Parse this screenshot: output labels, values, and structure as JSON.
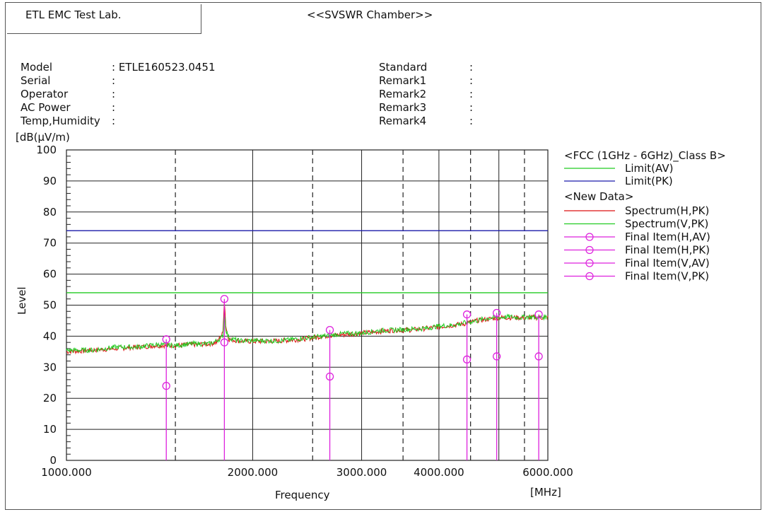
{
  "header": {
    "lab": "ETL EMC Test Lab.",
    "chamber": "<<SVSWR Chamber>>"
  },
  "info_left": [
    {
      "label": "Model",
      "value": ": ETLE160523.0451"
    },
    {
      "label": "Serial",
      "value": ":"
    },
    {
      "label": "Operator",
      "value": ":"
    },
    {
      "label": "AC Power",
      "value": ":"
    },
    {
      "label": "Temp,Humidity",
      "value": ":"
    }
  ],
  "info_right": [
    {
      "label": "Standard",
      "value": ":"
    },
    {
      "label": "Remark1",
      "value": ":"
    },
    {
      "label": "Remark2",
      "value": ":"
    },
    {
      "label": "Remark3",
      "value": ":"
    },
    {
      "label": "Remark4",
      "value": ":"
    }
  ],
  "chart_data": {
    "type": "line",
    "ylabel": "Level",
    "yunit": "[dB(μV/m)",
    "xlabel": "Frequency",
    "xunit": "[MHz]",
    "xscale": "log",
    "xlim": [
      1000,
      6000
    ],
    "ylim": [
      0,
      100
    ],
    "grid": true,
    "x_tick_labels": [
      {
        "value": 1000,
        "label": "1000.000"
      },
      {
        "value": 2000,
        "label": "2000.000"
      },
      {
        "value": 3000,
        "label": "3000.000"
      },
      {
        "value": 4000,
        "label": "4000.000"
      },
      {
        "value": 6000,
        "label": "6000.000"
      }
    ],
    "y_ticks": [
      0,
      10,
      20,
      30,
      40,
      50,
      60,
      70,
      80,
      90,
      100
    ],
    "x_grid_solid": [
      2000,
      3000,
      4000,
      5000
    ],
    "x_grid_dashed": [
      1500,
      2500,
      3500,
      4500,
      5500
    ],
    "legend_title": "<FCC (1GHz - 6GHz)_Class B>",
    "legend_placement": "right",
    "limits": [
      {
        "name": "Limit(AV)",
        "value": 54,
        "color": "#22cc22"
      },
      {
        "name": "Limit(PK)",
        "value": 74,
        "color": "#1a1aaa"
      }
    ],
    "legend_group": "<New Data>",
    "series": [
      {
        "name": "Spectrum(H,PK)",
        "color": "#dd1111",
        "x": [
          1000,
          1100,
          1200,
          1300,
          1400,
          1500,
          1600,
          1700,
          1750,
          1790,
          1800,
          1810,
          1830,
          1900,
          2000,
          2200,
          2400,
          2600,
          2800,
          3000,
          3200,
          3400,
          3600,
          3800,
          4000,
          4200,
          4400,
          4600,
          4800,
          5000,
          5200,
          5400,
          5600,
          5800,
          6000
        ],
        "values": [
          35,
          35.5,
          36,
          36.5,
          37,
          37,
          37.3,
          37.5,
          38,
          41,
          52,
          43,
          39,
          38.5,
          38.3,
          38.5,
          39,
          40,
          40.5,
          41,
          41.5,
          42,
          42,
          42.5,
          43,
          43.5,
          44,
          45,
          45.5,
          46,
          46,
          46,
          46,
          46,
          46
        ]
      },
      {
        "name": "Spectrum(V,PK)",
        "color": "#22cc22",
        "x": [
          1000,
          1100,
          1200,
          1300,
          1400,
          1500,
          1600,
          1700,
          1750,
          1790,
          1800,
          1810,
          1830,
          1900,
          2000,
          2200,
          2400,
          2600,
          2800,
          3000,
          3200,
          3400,
          3600,
          3800,
          4000,
          4200,
          4400,
          4600,
          4800,
          5000,
          5200,
          5400,
          5600,
          5800,
          6000
        ],
        "values": [
          35.5,
          35.5,
          36.5,
          36.5,
          37.3,
          37,
          37.6,
          37.5,
          38.5,
          40,
          48,
          42,
          39.5,
          38.5,
          38.6,
          38.5,
          39.3,
          40,
          40.8,
          41,
          41.8,
          42,
          42.3,
          42.5,
          43.3,
          43.5,
          44.3,
          45,
          45.8,
          46,
          46.3,
          46,
          46.3,
          46,
          46.3
        ]
      },
      {
        "name": "Final Item(H,AV)",
        "color": "#dd22dd",
        "marker": "circle"
      },
      {
        "name": "Final Item(H,PK)",
        "color": "#dd22dd",
        "marker": "circle"
      },
      {
        "name": "Final Item(V,AV)",
        "color": "#dd22dd",
        "marker": "circle"
      },
      {
        "name": "Final Item(V,PK)",
        "color": "#dd22dd",
        "marker": "circle"
      }
    ],
    "final_items": [
      {
        "x": 1450,
        "peak": 39,
        "avg": 24
      },
      {
        "x": 1800,
        "peak": 52,
        "avg": 38
      },
      {
        "x": 2665,
        "peak": 42,
        "avg": 27
      },
      {
        "x": 4440,
        "peak": 47,
        "avg": 32.5
      },
      {
        "x": 4960,
        "peak": 47.5,
        "avg": 33.5
      },
      {
        "x": 5800,
        "peak": 47,
        "avg": 33.5
      }
    ]
  }
}
